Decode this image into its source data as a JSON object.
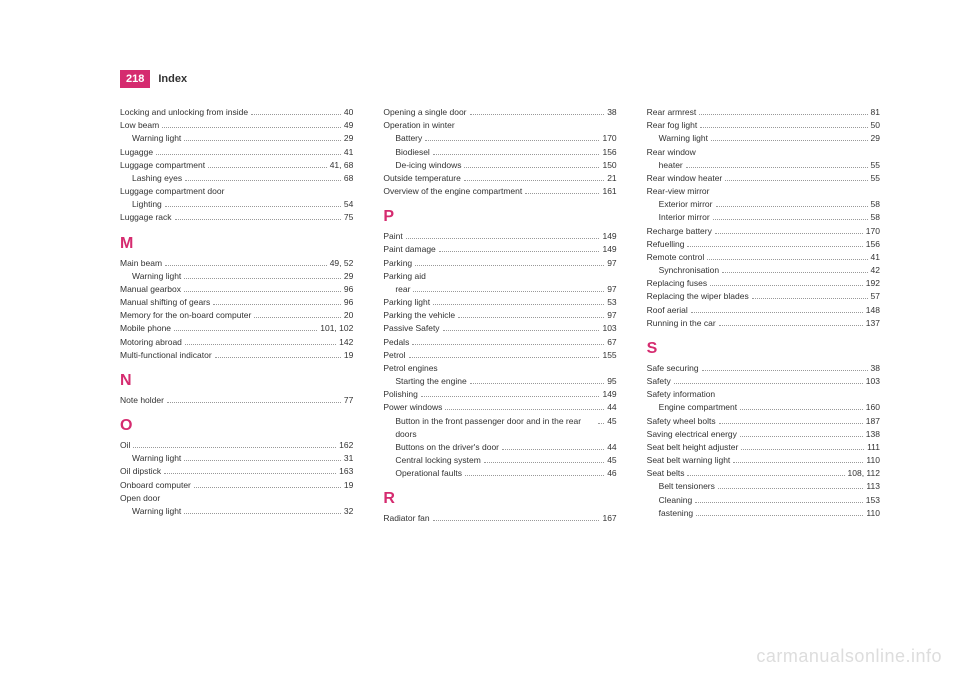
{
  "header": {
    "page_number": "218",
    "title": "Index"
  },
  "watermark": "carmanualsonline.info",
  "columns": [
    {
      "entries": [
        {
          "label": "Locking and unlocking from inside",
          "page": "40"
        },
        {
          "label": "Low beam",
          "page": "49"
        },
        {
          "label": "Warning light",
          "page": "29",
          "sub": true
        },
        {
          "label": "Lugagge",
          "page": "41"
        },
        {
          "label": "Luggage compartment",
          "page": "41, 68"
        },
        {
          "label": "Lashing eyes",
          "page": "68",
          "sub": true
        },
        {
          "label": "Luggage compartment door",
          "page": ""
        },
        {
          "label": "Lighting",
          "page": "54",
          "sub": true
        },
        {
          "label": "Luggage rack",
          "page": "75"
        },
        {
          "letter": "M"
        },
        {
          "label": "Main beam",
          "page": "49, 52"
        },
        {
          "label": "Warning light",
          "page": "29",
          "sub": true
        },
        {
          "label": "Manual gearbox",
          "page": "96"
        },
        {
          "label": "Manual shifting of gears",
          "page": "96"
        },
        {
          "label": "Memory for the on-board computer",
          "page": "20"
        },
        {
          "label": "Mobile phone",
          "page": "101, 102"
        },
        {
          "label": "Motoring abroad",
          "page": "142"
        },
        {
          "label": "Multi-functional indicator",
          "page": "19"
        },
        {
          "letter": "N"
        },
        {
          "label": "Note holder",
          "page": "77"
        },
        {
          "letter": "O"
        },
        {
          "label": "Oil",
          "page": "162"
        },
        {
          "label": "Warning light",
          "page": "31",
          "sub": true
        },
        {
          "label": "Oil dipstick",
          "page": "163"
        },
        {
          "label": "Onboard computer",
          "page": "19"
        },
        {
          "label": "Open door",
          "page": ""
        },
        {
          "label": "Warning light",
          "page": "32",
          "sub": true
        }
      ]
    },
    {
      "entries": [
        {
          "label": "Opening a single door",
          "page": "38"
        },
        {
          "label": "Operation in winter",
          "page": ""
        },
        {
          "label": "Battery",
          "page": "170",
          "sub": true
        },
        {
          "label": "Biodiesel",
          "page": "156",
          "sub": true
        },
        {
          "label": "De-icing windows",
          "page": "150",
          "sub": true
        },
        {
          "label": "Outside temperature",
          "page": "21"
        },
        {
          "label": "Overview of the engine compartment",
          "page": "161"
        },
        {
          "letter": "P"
        },
        {
          "label": "Paint",
          "page": "149"
        },
        {
          "label": "Paint damage",
          "page": "149"
        },
        {
          "label": "Parking",
          "page": "97"
        },
        {
          "label": "Parking aid",
          "page": ""
        },
        {
          "label": "rear",
          "page": "97",
          "sub": true
        },
        {
          "label": "Parking light",
          "page": "53"
        },
        {
          "label": "Parking the vehicle",
          "page": "97"
        },
        {
          "label": "Passive Safety",
          "page": "103"
        },
        {
          "label": "Pedals",
          "page": "67"
        },
        {
          "label": "Petrol",
          "page": "155"
        },
        {
          "label": "Petrol engines",
          "page": ""
        },
        {
          "label": "Starting the engine",
          "page": "95",
          "sub": true
        },
        {
          "label": "Polishing",
          "page": "149"
        },
        {
          "label": "Power windows",
          "page": "44"
        },
        {
          "label": "Button in the front passenger door and in the rear doors",
          "page": "45",
          "sub": true,
          "wrap": true
        },
        {
          "label": "Buttons on the driver's door",
          "page": "44",
          "sub": true
        },
        {
          "label": "Central locking system",
          "page": "45",
          "sub": true
        },
        {
          "label": "Operational faults",
          "page": "46",
          "sub": true
        },
        {
          "letter": "R"
        },
        {
          "label": "Radiator fan",
          "page": "167"
        }
      ]
    },
    {
      "entries": [
        {
          "label": "Rear armrest",
          "page": "81"
        },
        {
          "label": "Rear fog light",
          "page": "50"
        },
        {
          "label": "Warning light",
          "page": "29",
          "sub": true
        },
        {
          "label": "Rear window",
          "page": ""
        },
        {
          "label": "heater",
          "page": "55",
          "sub": true
        },
        {
          "label": "Rear window heater",
          "page": "55"
        },
        {
          "label": "Rear-view mirror",
          "page": ""
        },
        {
          "label": "Exterior mirror",
          "page": "58",
          "sub": true
        },
        {
          "label": "Interior mirror",
          "page": "58",
          "sub": true
        },
        {
          "label": "Recharge battery",
          "page": "170"
        },
        {
          "label": "Refuelling",
          "page": "156"
        },
        {
          "label": "Remote control",
          "page": "41"
        },
        {
          "label": "Synchronisation",
          "page": "42",
          "sub": true
        },
        {
          "label": "Replacing fuses",
          "page": "192"
        },
        {
          "label": "Replacing the wiper blades",
          "page": "57"
        },
        {
          "label": "Roof aerial",
          "page": "148"
        },
        {
          "label": "Running in the car",
          "page": "137"
        },
        {
          "letter": "S"
        },
        {
          "label": "Safe securing",
          "page": "38"
        },
        {
          "label": "Safety",
          "page": "103"
        },
        {
          "label": "Safety information",
          "page": ""
        },
        {
          "label": "Engine compartment",
          "page": "160",
          "sub": true
        },
        {
          "label": "Safety wheel bolts",
          "page": "187"
        },
        {
          "label": "Saving electrical energy",
          "page": "138"
        },
        {
          "label": "Seat belt height adjuster",
          "page": "111"
        },
        {
          "label": "Seat belt warning light",
          "page": "110"
        },
        {
          "label": "Seat belts",
          "page": "108, 112"
        },
        {
          "label": "Belt tensioners",
          "page": "113",
          "sub": true
        },
        {
          "label": "Cleaning",
          "page": "153",
          "sub": true
        },
        {
          "label": "fastening",
          "page": "110",
          "sub": true
        }
      ]
    }
  ]
}
